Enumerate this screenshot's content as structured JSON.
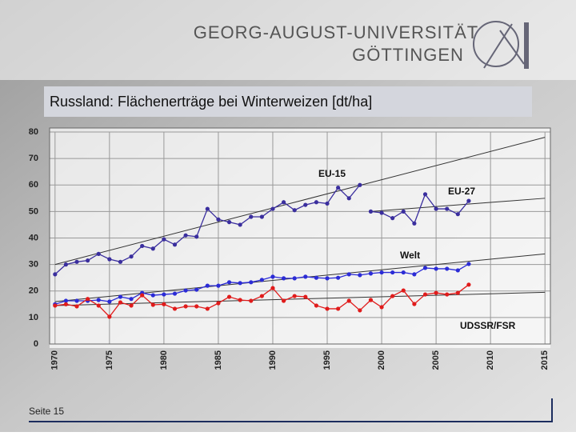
{
  "header": {
    "line1": "GEORG-AUGUST-UNIVERSITÄT",
    "line2": "GÖTTINGEN"
  },
  "footer": {
    "page": "Seite 15"
  },
  "chart_data": {
    "type": "line",
    "title": "Russland: Flächenerträge bei Winterweizen [dt/ha]",
    "x": [
      1970,
      1971,
      1972,
      1973,
      1974,
      1975,
      1976,
      1977,
      1978,
      1979,
      1980,
      1981,
      1982,
      1983,
      1984,
      1985,
      1986,
      1987,
      1988,
      1989,
      1990,
      1991,
      1992,
      1993,
      1994,
      1995,
      1996,
      1997,
      1998,
      1999,
      2000,
      2001,
      2002,
      2003,
      2004,
      2005,
      2006,
      2007,
      2008
    ],
    "series": [
      {
        "name": "EU-15",
        "color": "#3a2e9e",
        "values": [
          26.3,
          30,
          31,
          31.5,
          34,
          32,
          31,
          33,
          37,
          36,
          39.5,
          37.5,
          41,
          40.5,
          51,
          47,
          46,
          45,
          48,
          48,
          51,
          53.5,
          50.5,
          52.5,
          53.5,
          53,
          59,
          55,
          60,
          null,
          null,
          null,
          null,
          null,
          null,
          null,
          null,
          null,
          null
        ],
        "trend": {
          "x": [
            1970,
            2015
          ],
          "values": [
            30,
            78
          ]
        }
      },
      {
        "name": "EU-27",
        "color": "#3a2e9e",
        "values": [
          null,
          null,
          null,
          null,
          null,
          null,
          null,
          null,
          null,
          null,
          null,
          null,
          null,
          null,
          null,
          null,
          null,
          null,
          null,
          null,
          null,
          null,
          null,
          null,
          null,
          null,
          null,
          null,
          null,
          50,
          49.5,
          47.5,
          50,
          45.5,
          56.5,
          51,
          51,
          49,
          54
        ],
        "trend": {
          "x": [
            1999,
            2015
          ],
          "values": [
            50,
            55
          ]
        }
      },
      {
        "name": "Welt",
        "color": "#2b2bd6",
        "values": [
          15,
          16.3,
          16.3,
          16.3,
          16.6,
          16,
          17.8,
          17,
          19.3,
          18.4,
          18.7,
          19,
          20.2,
          20.5,
          22,
          22,
          23.3,
          23,
          23.3,
          24.2,
          25.4,
          24.8,
          24.8,
          25.4,
          25,
          24.8,
          25,
          26.3,
          26,
          26.6,
          27,
          27,
          27,
          26.3,
          28.7,
          28.4,
          28.4,
          27.8,
          30.2
        ],
        "trend": {
          "x": [
            1970,
            2015
          ],
          "values": [
            16,
            34
          ]
        }
      },
      {
        "name": "UDSSR/FSR",
        "color": "#e01b1b",
        "values": [
          14.5,
          15,
          14.2,
          17,
          14.5,
          10.3,
          15.7,
          14.5,
          18.4,
          14.8,
          15,
          13.3,
          14.2,
          14.2,
          13.3,
          15.4,
          17.8,
          16.6,
          16.3,
          18.1,
          21.1,
          16.3,
          18.1,
          17.8,
          14.5,
          13.3,
          13.3,
          16.3,
          12.7,
          16.6,
          13.9,
          18.1,
          20.2,
          15.1,
          18.7,
          19.3,
          18.7,
          19.3,
          22.4
        ],
        "trend": {
          "x": [
            1970,
            2015
          ],
          "values": [
            14.5,
            19.5
          ]
        }
      }
    ],
    "xlim": [
      1969.5,
      2015.5
    ],
    "xticks": [
      1970,
      1975,
      1980,
      1985,
      1990,
      1995,
      2000,
      2005,
      2010,
      2015
    ],
    "ylim": [
      0,
      80
    ],
    "yticks": [
      0,
      10,
      20,
      30,
      40,
      50,
      60,
      70,
      80
    ],
    "grid": true
  }
}
